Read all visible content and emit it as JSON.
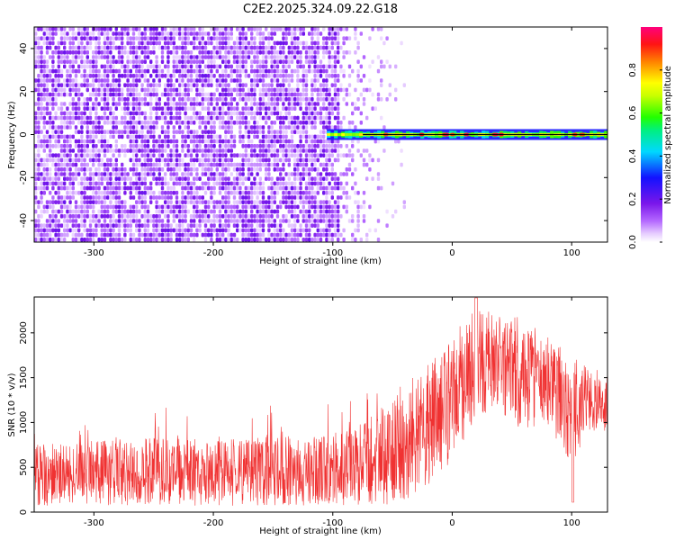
{
  "title": "C2E2.2025.324.09.22.G18",
  "chart_data": [
    {
      "type": "heatmap",
      "xlabel": "Height of straight line (km)",
      "ylabel": "Frequency (Hz)",
      "xlim": [
        -350,
        130
      ],
      "ylim": [
        -50,
        50
      ],
      "xticks": [
        -300,
        -200,
        -100,
        0,
        100
      ],
      "yticks": [
        -40,
        -20,
        0,
        20,
        40
      ],
      "colorbar": {
        "label": "Normalized spectral amplitude",
        "range": [
          0,
          1
        ],
        "ticks": [
          "0.0",
          "0.2",
          "0.4",
          "0.6",
          "0.8"
        ],
        "colormap": "rainbow (white → violet → blue → cyan → green → yellow → orange → red → magenta)"
      },
      "regions": [
        {
          "x": [
            -350,
            -95
          ],
          "description": "dense scattered noise, normalized amplitude ~0.0–0.25, spanning full frequency range"
        },
        {
          "x": [
            -95,
            -40
          ],
          "description": "sparse faint noise, amplitude ~0.0–0.1"
        },
        {
          "x": [
            -105,
            130
          ],
          "frequency_hz": 0,
          "description": "narrow tone at 0 Hz, amplitude 0.3–0.95"
        }
      ]
    },
    {
      "type": "line",
      "xlabel": "Height of straight line (km)",
      "ylabel": "SNR (10 * v/v)",
      "xlim": [
        -350,
        130
      ],
      "ylim": [
        0,
        2400
      ],
      "xticks": [
        -300,
        -200,
        -100,
        0,
        100
      ],
      "yticks": [
        0,
        500,
        1000,
        1500,
        2000
      ],
      "color": "#f03232",
      "envelope": {
        "x": [
          -350,
          -300,
          -250,
          -200,
          -150,
          -120,
          -100,
          -80,
          -60,
          -50,
          -40,
          -30,
          -20,
          -10,
          0,
          10,
          20,
          30,
          40,
          50,
          60,
          70,
          80,
          90,
          100,
          110,
          120,
          130
        ],
        "lo": [
          70,
          70,
          70,
          70,
          70,
          70,
          70,
          70,
          60,
          80,
          100,
          150,
          300,
          400,
          600,
          800,
          1000,
          1100,
          1100,
          1000,
          900,
          900,
          850,
          800,
          500,
          800,
          900,
          900
        ],
        "hi": [
          750,
          800,
          850,
          800,
          850,
          850,
          900,
          950,
          1150,
          1300,
          1450,
          1550,
          1650,
          1800,
          1950,
          2150,
          2250,
          2250,
          2200,
          2200,
          2150,
          2050,
          1950,
          1850,
          1750,
          1650,
          1600,
          1550
        ]
      },
      "notes": "dense noisy red trace; spike to ~2390 near 20 km; dip to ~100 near 100 km"
    }
  ]
}
